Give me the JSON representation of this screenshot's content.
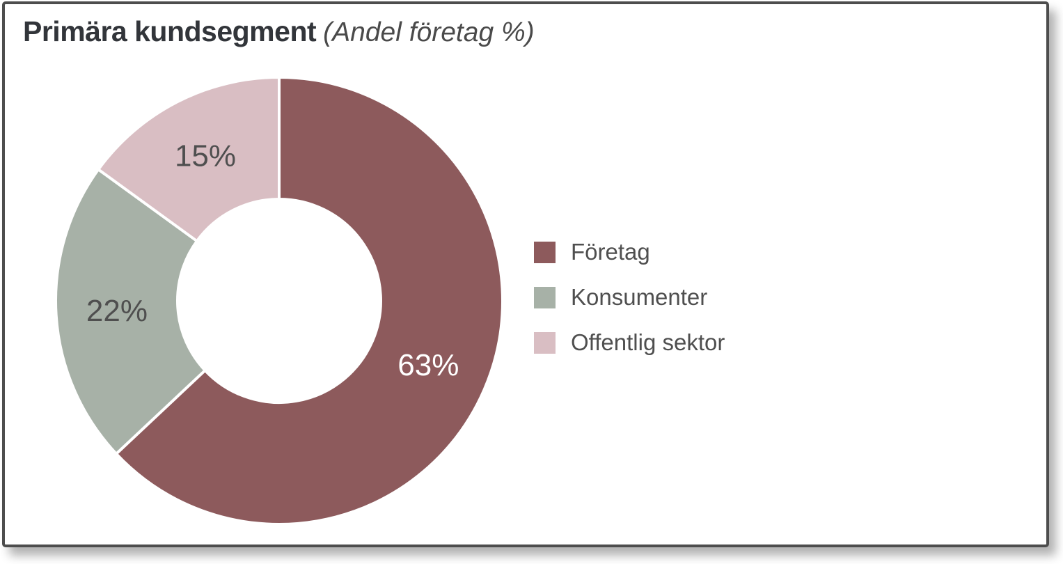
{
  "card": {
    "title": "Primära kundsegment",
    "subtitle": "(Andel företag %)"
  },
  "colors": {
    "card_border": "#4d4d4d",
    "card_background": "#ffffff",
    "title_text": "#32353a",
    "subtitle_text": "#4a4a4a",
    "slice_label_dark": "#4f4f4f",
    "slice_label_light": "#ffffff",
    "segment_divider": "#ffffff"
  },
  "chart_data": {
    "type": "pie",
    "subtype": "donut",
    "title": "Primära kundsegment",
    "subtitle": "(Andel företag %)",
    "unit": "%",
    "direction": "clockwise",
    "start_angle_deg": 0,
    "inner_radius_ratio": 0.455,
    "legend_position": "right",
    "categories": [
      "Företag",
      "Konsumenter",
      "Offentlig sektor"
    ],
    "values": [
      63,
      22,
      15
    ],
    "data_labels": [
      "63%",
      "22%",
      "15%"
    ],
    "segment_colors": [
      "#8d5a5c",
      "#a7b1a7",
      "#d9bec3"
    ],
    "label_colors": [
      "#ffffff",
      "#4f4f4f",
      "#4f4f4f"
    ]
  },
  "legend": {
    "items": [
      {
        "label": "Företag",
        "color": "#8d5a5c"
      },
      {
        "label": "Konsumenter",
        "color": "#a7b1a7"
      },
      {
        "label": "Offentlig sektor",
        "color": "#d9bec3"
      }
    ]
  }
}
